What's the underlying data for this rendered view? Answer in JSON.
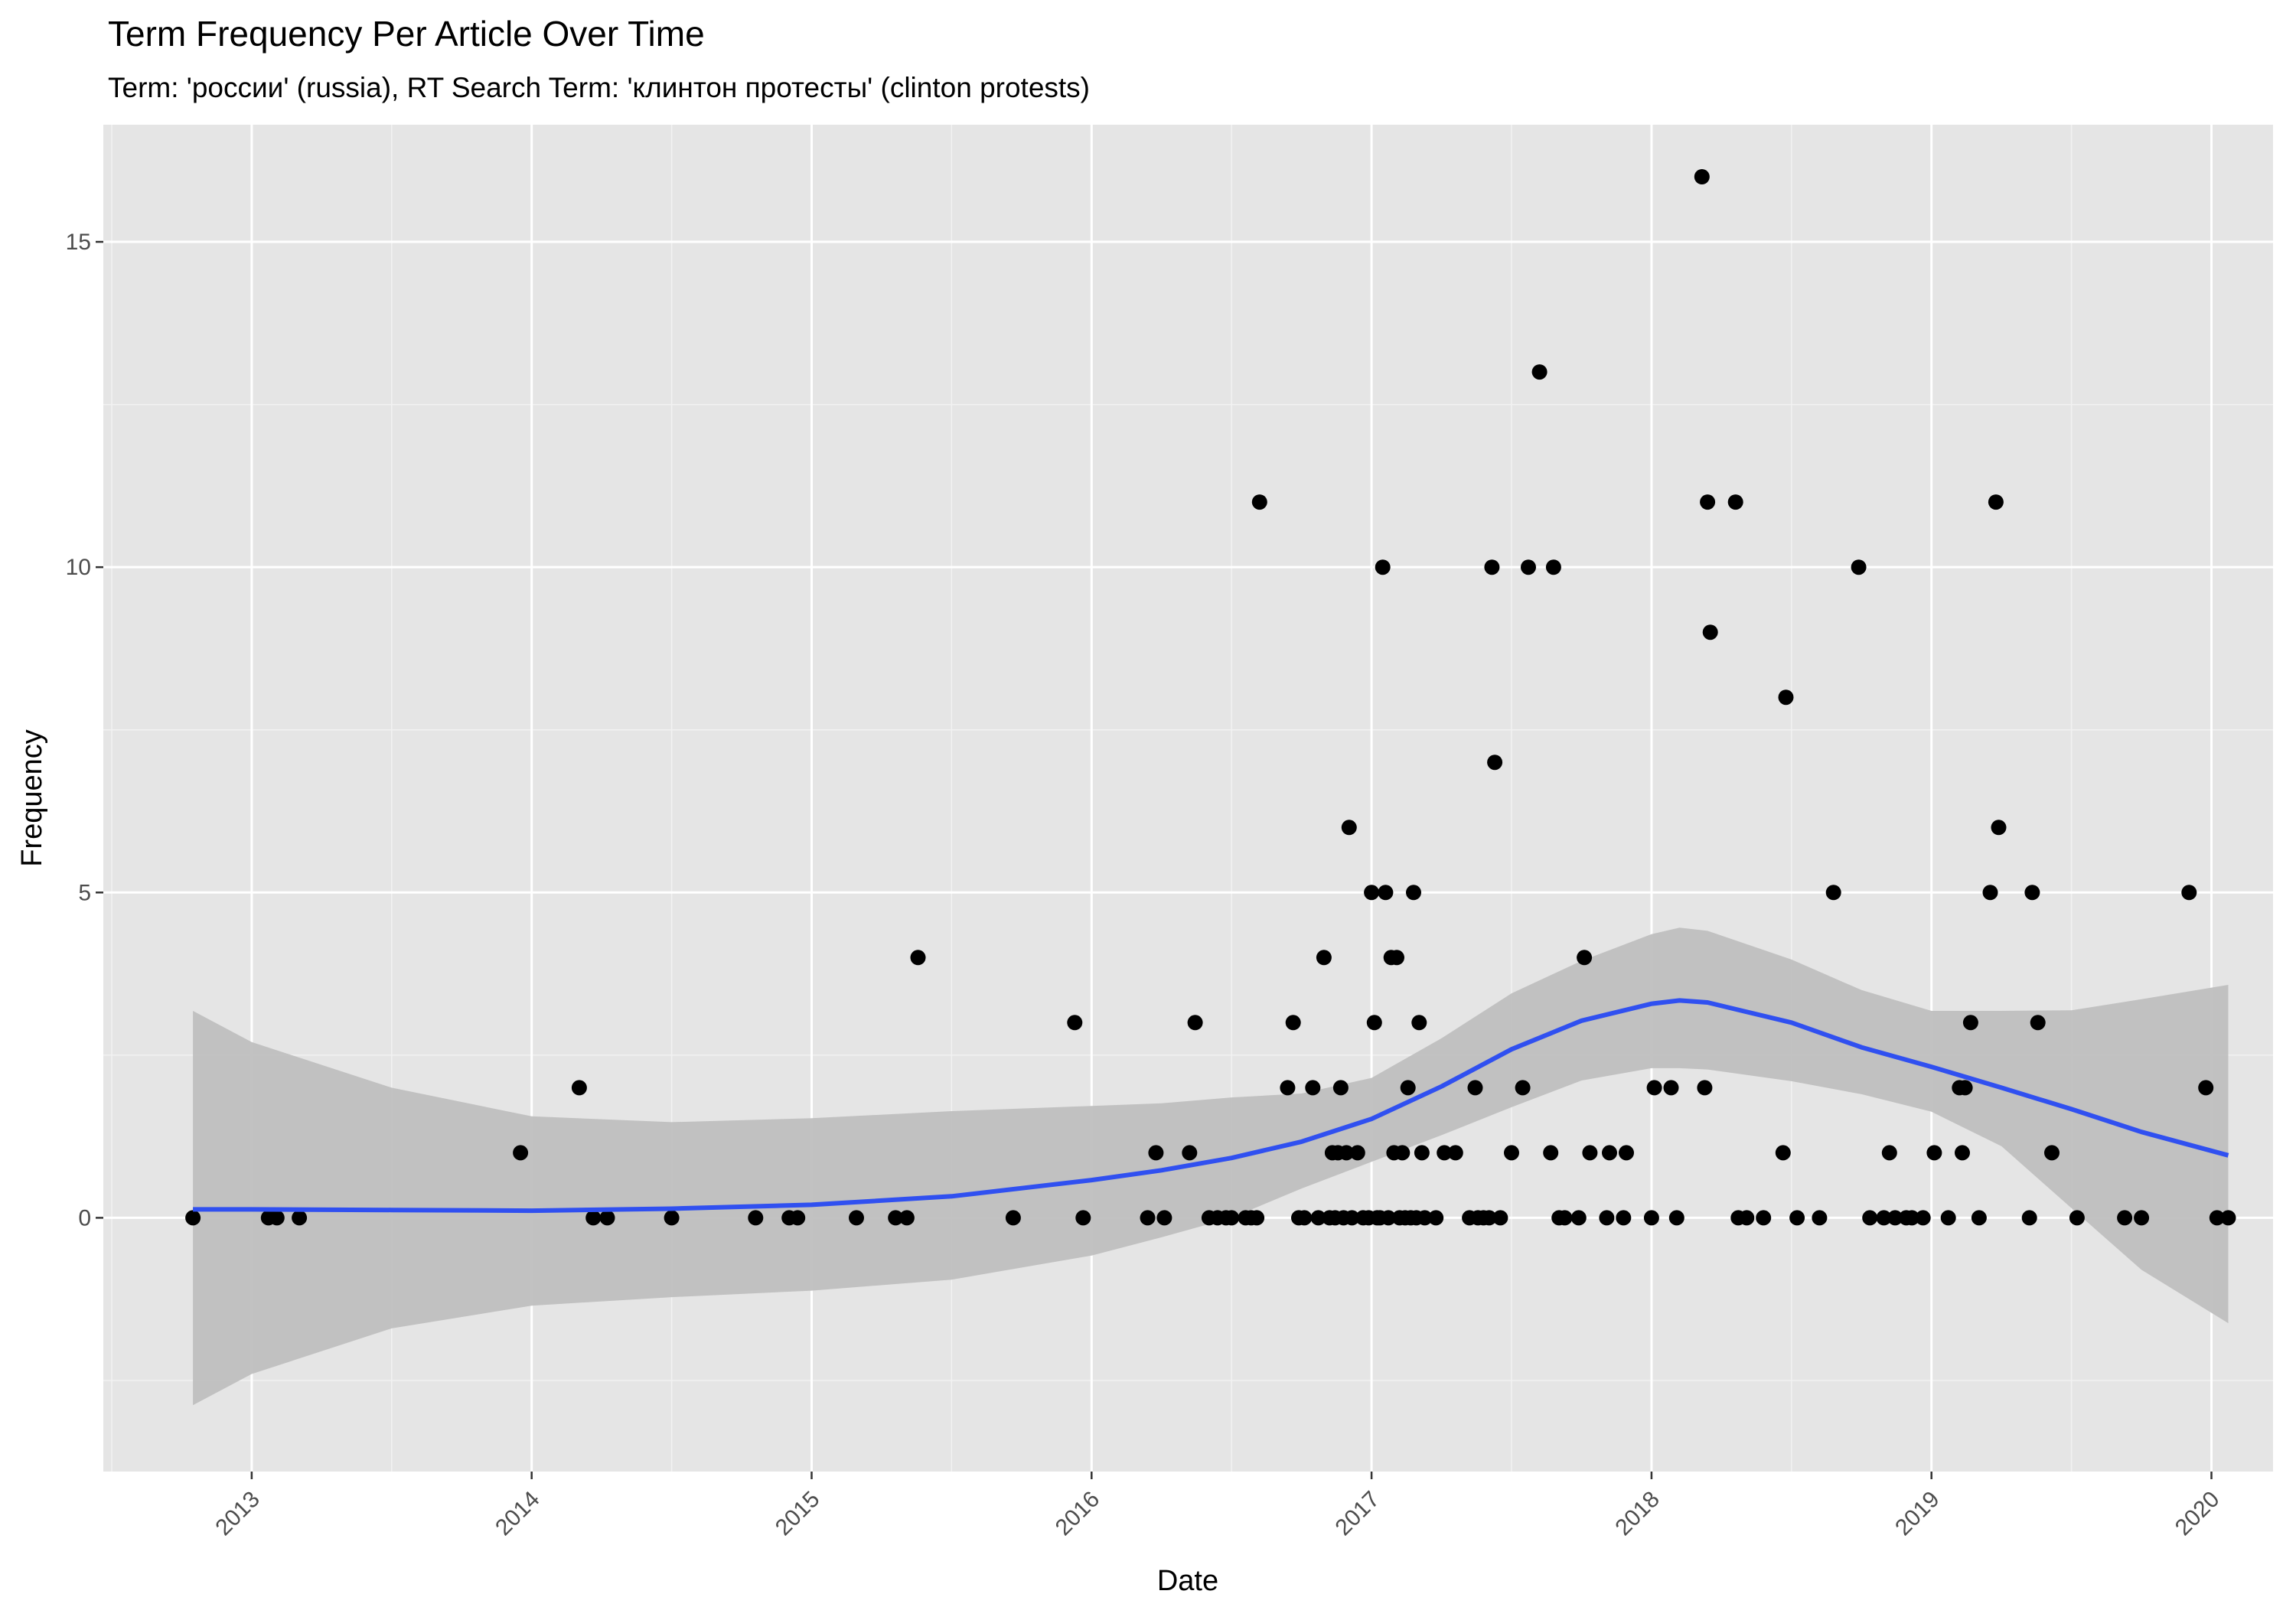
{
  "chart_data": {
    "type": "scatter",
    "title": "Term Frequency Per Article Over Time",
    "subtitle": "Term: 'россии' (russia), RT Search Term: 'клинтон протесты' (clinton protests)",
    "xlabel": "Date",
    "ylabel": "Frequency",
    "xlim": [
      2012.47,
      2020.22
    ],
    "ylim": [
      -3.9,
      16.8
    ],
    "x_ticks": [
      {
        "value": 2013,
        "label": "2013"
      },
      {
        "value": 2014,
        "label": "2014"
      },
      {
        "value": 2015,
        "label": "2015"
      },
      {
        "value": 2016,
        "label": "2016"
      },
      {
        "value": 2017,
        "label": "2017"
      },
      {
        "value": 2018,
        "label": "2018"
      },
      {
        "value": 2019,
        "label": "2019"
      },
      {
        "value": 2020,
        "label": "2020"
      }
    ],
    "y_ticks": [
      {
        "value": 0,
        "label": "0"
      },
      {
        "value": 5,
        "label": "5"
      },
      {
        "value": 10,
        "label": "10"
      },
      {
        "value": 15,
        "label": "15"
      }
    ],
    "grid": true,
    "background": "#e5e5e5",
    "point_color": "#000000",
    "smooth_color": "#3050f0",
    "band_color": "#bfbfbf",
    "legend": "none",
    "points": [
      [
        2012.79,
        0
      ],
      [
        2013.06,
        0
      ],
      [
        2013.09,
        0
      ],
      [
        2013.17,
        0
      ],
      [
        2013.96,
        1
      ],
      [
        2014.17,
        2
      ],
      [
        2014.22,
        0
      ],
      [
        2014.27,
        0
      ],
      [
        2014.5,
        0
      ],
      [
        2014.8,
        0
      ],
      [
        2014.92,
        0
      ],
      [
        2014.95,
        0
      ],
      [
        2015.16,
        0
      ],
      [
        2015.3,
        0
      ],
      [
        2015.34,
        0
      ],
      [
        2015.38,
        4
      ],
      [
        2015.72,
        0
      ],
      [
        2015.94,
        3
      ],
      [
        2015.97,
        0
      ],
      [
        2016.2,
        0
      ],
      [
        2016.23,
        1
      ],
      [
        2016.26,
        0
      ],
      [
        2016.35,
        1
      ],
      [
        2016.37,
        3
      ],
      [
        2016.42,
        0
      ],
      [
        2016.45,
        0
      ],
      [
        2016.48,
        0
      ],
      [
        2016.5,
        0
      ],
      [
        2016.55,
        0
      ],
      [
        2016.57,
        0
      ],
      [
        2016.59,
        0
      ],
      [
        2016.6,
        11
      ],
      [
        2016.7,
        2
      ],
      [
        2016.72,
        3
      ],
      [
        2016.74,
        0
      ],
      [
        2016.76,
        0
      ],
      [
        2016.79,
        2
      ],
      [
        2016.81,
        0
      ],
      [
        2016.83,
        4
      ],
      [
        2016.85,
        0
      ],
      [
        2016.86,
        1
      ],
      [
        2016.87,
        0
      ],
      [
        2016.88,
        1
      ],
      [
        2016.89,
        2
      ],
      [
        2016.9,
        0
      ],
      [
        2016.91,
        1
      ],
      [
        2016.92,
        6
      ],
      [
        2016.93,
        0
      ],
      [
        2016.95,
        1
      ],
      [
        2016.97,
        0
      ],
      [
        2016.99,
        0
      ],
      [
        2017.0,
        5
      ],
      [
        2017.01,
        3
      ],
      [
        2017.02,
        0
      ],
      [
        2017.03,
        0
      ],
      [
        2017.04,
        10
      ],
      [
        2017.05,
        5
      ],
      [
        2017.06,
        0
      ],
      [
        2017.07,
        4
      ],
      [
        2017.08,
        1
      ],
      [
        2017.09,
        4
      ],
      [
        2017.1,
        0
      ],
      [
        2017.11,
        1
      ],
      [
        2017.12,
        0
      ],
      [
        2017.13,
        2
      ],
      [
        2017.14,
        0
      ],
      [
        2017.15,
        5
      ],
      [
        2017.16,
        0
      ],
      [
        2017.17,
        3
      ],
      [
        2017.18,
        1
      ],
      [
        2017.19,
        0
      ],
      [
        2017.23,
        0
      ],
      [
        2017.26,
        1
      ],
      [
        2017.3,
        1
      ],
      [
        2017.35,
        0
      ],
      [
        2017.37,
        2
      ],
      [
        2017.38,
        0
      ],
      [
        2017.4,
        0
      ],
      [
        2017.42,
        0
      ],
      [
        2017.43,
        10
      ],
      [
        2017.44,
        7
      ],
      [
        2017.46,
        0
      ],
      [
        2017.5,
        1
      ],
      [
        2017.54,
        2
      ],
      [
        2017.56,
        10
      ],
      [
        2017.6,
        13
      ],
      [
        2017.64,
        1
      ],
      [
        2017.65,
        10
      ],
      [
        2017.67,
        0
      ],
      [
        2017.69,
        0
      ],
      [
        2017.74,
        0
      ],
      [
        2017.76,
        4
      ],
      [
        2017.78,
        1
      ],
      [
        2017.84,
        0
      ],
      [
        2017.85,
        1
      ],
      [
        2017.9,
        0
      ],
      [
        2017.91,
        1
      ],
      [
        2018.0,
        0
      ],
      [
        2018.01,
        2
      ],
      [
        2018.07,
        2
      ],
      [
        2018.09,
        0
      ],
      [
        2018.18,
        16
      ],
      [
        2018.19,
        2
      ],
      [
        2018.2,
        11
      ],
      [
        2018.21,
        9
      ],
      [
        2018.3,
        11
      ],
      [
        2018.31,
        0
      ],
      [
        2018.34,
        0
      ],
      [
        2018.4,
        0
      ],
      [
        2018.47,
        1
      ],
      [
        2018.48,
        8
      ],
      [
        2018.52,
        0
      ],
      [
        2018.6,
        0
      ],
      [
        2018.65,
        5
      ],
      [
        2018.74,
        10
      ],
      [
        2018.78,
        0
      ],
      [
        2018.83,
        0
      ],
      [
        2018.85,
        1
      ],
      [
        2018.87,
        0
      ],
      [
        2018.91,
        0
      ],
      [
        2018.93,
        0
      ],
      [
        2018.97,
        0
      ],
      [
        2019.01,
        1
      ],
      [
        2019.06,
        0
      ],
      [
        2019.1,
        2
      ],
      [
        2019.11,
        1
      ],
      [
        2019.12,
        2
      ],
      [
        2019.14,
        3
      ],
      [
        2019.17,
        0
      ],
      [
        2019.21,
        5
      ],
      [
        2019.23,
        11
      ],
      [
        2019.24,
        6
      ],
      [
        2019.35,
        0
      ],
      [
        2019.36,
        5
      ],
      [
        2019.38,
        3
      ],
      [
        2019.43,
        1
      ],
      [
        2019.52,
        0
      ],
      [
        2019.69,
        0
      ],
      [
        2019.75,
        0
      ],
      [
        2019.92,
        5
      ],
      [
        2019.98,
        2
      ],
      [
        2020.02,
        0
      ],
      [
        2020.06,
        0
      ]
    ],
    "smooth": {
      "x": [
        2012.79,
        2013.0,
        2013.5,
        2014.0,
        2014.5,
        2015.0,
        2015.5,
        2016.0,
        2016.25,
        2016.5,
        2016.75,
        2017.0,
        2017.25,
        2017.5,
        2017.75,
        2018.0,
        2018.1,
        2018.2,
        2018.5,
        2018.75,
        2019.0,
        2019.25,
        2019.5,
        2019.75,
        2020.06
      ],
      "y": [
        0.13,
        0.13,
        0.12,
        0.11,
        0.14,
        0.2,
        0.33,
        0.58,
        0.73,
        0.92,
        1.17,
        1.52,
        2.02,
        2.59,
        3.03,
        3.29,
        3.34,
        3.31,
        3.0,
        2.62,
        2.32,
        2.0,
        1.67,
        1.32,
        0.96
      ],
      "ymin": [
        -2.88,
        -2.4,
        -1.7,
        -1.35,
        -1.22,
        -1.12,
        -0.95,
        -0.58,
        -0.3,
        0.0,
        0.45,
        0.86,
        1.27,
        1.7,
        2.11,
        2.3,
        2.3,
        2.28,
        2.1,
        1.9,
        1.63,
        1.1,
        0.15,
        -0.8,
        -1.62
      ],
      "ymax": [
        3.18,
        2.7,
        2.0,
        1.56,
        1.47,
        1.53,
        1.64,
        1.72,
        1.76,
        1.85,
        1.91,
        2.15,
        2.76,
        3.45,
        3.95,
        4.36,
        4.46,
        4.41,
        3.97,
        3.5,
        3.18,
        3.18,
        3.19,
        3.36,
        3.58
      ]
    }
  }
}
